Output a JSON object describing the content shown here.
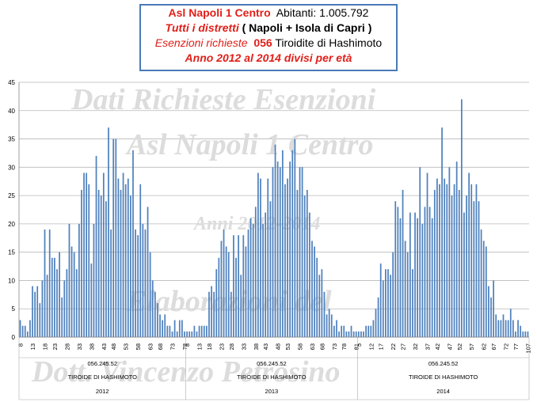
{
  "title_lines": {
    "line1_a": "Asl Napoli 1 Centro",
    "line1_b": "Abitanti: 1.005.792",
    "line2_a": "Tutti i distretti",
    "line2_b": "( Napoli + Isola di Capri )",
    "line3_a": "Esenzioni richieste",
    "line3_b": "056",
    "line3_c": "Tiroidite di Hashimoto",
    "line4": "Anno 2012 al 2014 divisi per età"
  },
  "watermarks": [
    "Dati Richieste Esenzioni",
    "Asl Napoli 1 Centro",
    "Anni 2012-2014",
    "Elaborazioni del",
    "Dott. Vincenzo Petrosino"
  ],
  "colors": {
    "bar": "#4f81bd",
    "title_red": "#e0201a",
    "title_border": "#4a7ab8",
    "grid": "#b8b8b8",
    "watermark": "#dcdcdc"
  },
  "chart_data": {
    "type": "bar",
    "ylim": [
      0,
      45
    ],
    "yticks": [
      0,
      5,
      10,
      15,
      20,
      25,
      30,
      35,
      40,
      45
    ],
    "grid": true,
    "groups": [
      {
        "code": "056.245.52",
        "name": "TIROIDE DI HASHIMOTO",
        "year": "2012",
        "tick_labels": [
          "8",
          "13",
          "18",
          "23",
          "28",
          "33",
          "38",
          "43",
          "48",
          "53",
          "58",
          "63",
          "68",
          "73",
          "78"
        ],
        "values": [
          3,
          2,
          2,
          1,
          3,
          9,
          8,
          9,
          6,
          10,
          19,
          11,
          19,
          14,
          14,
          12,
          15,
          7,
          10,
          12,
          20,
          16,
          15,
          12,
          20,
          26,
          29,
          29,
          27,
          13,
          20,
          32,
          26,
          25,
          29,
          24,
          37,
          19,
          35,
          35,
          28,
          26,
          29,
          27,
          28,
          25,
          33,
          19,
          18,
          27,
          20,
          19,
          23,
          15,
          10,
          8,
          6,
          4,
          3,
          4,
          2,
          2,
          1,
          3,
          1,
          3,
          3,
          1
        ]
      },
      {
        "code": "056.245.52",
        "name": "TIROIDE DI HASHIMOTO",
        "year": "2013",
        "tick_labels": [
          "8",
          "13",
          "18",
          "23",
          "28",
          "33",
          "38",
          "43",
          "48",
          "53",
          "58",
          "63",
          "68",
          "73",
          "78",
          "81"
        ],
        "values": [
          1,
          1,
          1,
          2,
          1,
          2,
          2,
          2,
          2,
          8,
          9,
          8,
          12,
          14,
          17,
          19,
          16,
          15,
          8,
          18,
          14,
          18,
          11,
          18,
          16,
          19,
          21,
          20,
          23,
          29,
          28,
          20,
          22,
          28,
          24,
          30,
          34,
          31,
          30,
          33,
          27,
          28,
          31,
          33,
          35,
          26,
          30,
          30,
          25,
          26,
          22,
          17,
          16,
          14,
          11,
          12,
          8,
          4,
          5,
          4,
          2,
          3,
          1,
          2,
          2,
          1,
          1,
          2,
          1,
          1
        ]
      },
      {
        "code": "056.245.52",
        "name": "TIROIDE DI HASHIMOTO",
        "year": "2014",
        "tick_labels": [
          "5",
          "12",
          "17",
          "22",
          "27",
          "32",
          "37",
          "42",
          "47",
          "52",
          "57",
          "62",
          "67",
          "72",
          "77",
          "107"
        ],
        "values": [
          1,
          1,
          1,
          2,
          2,
          2,
          3,
          5,
          7,
          13,
          10,
          12,
          12,
          11,
          15,
          24,
          23,
          21,
          26,
          17,
          15,
          22,
          12,
          22,
          21,
          30,
          20,
          23,
          29,
          23,
          21,
          26,
          28,
          27,
          37,
          28,
          27,
          30,
          25,
          27,
          31,
          26,
          42,
          22,
          25,
          29,
          27,
          24,
          27,
          24,
          19,
          17,
          16,
          9,
          7,
          10,
          4,
          3,
          3,
          4,
          3,
          3,
          5,
          3,
          1,
          3,
          2,
          1,
          1,
          1
        ]
      }
    ]
  }
}
